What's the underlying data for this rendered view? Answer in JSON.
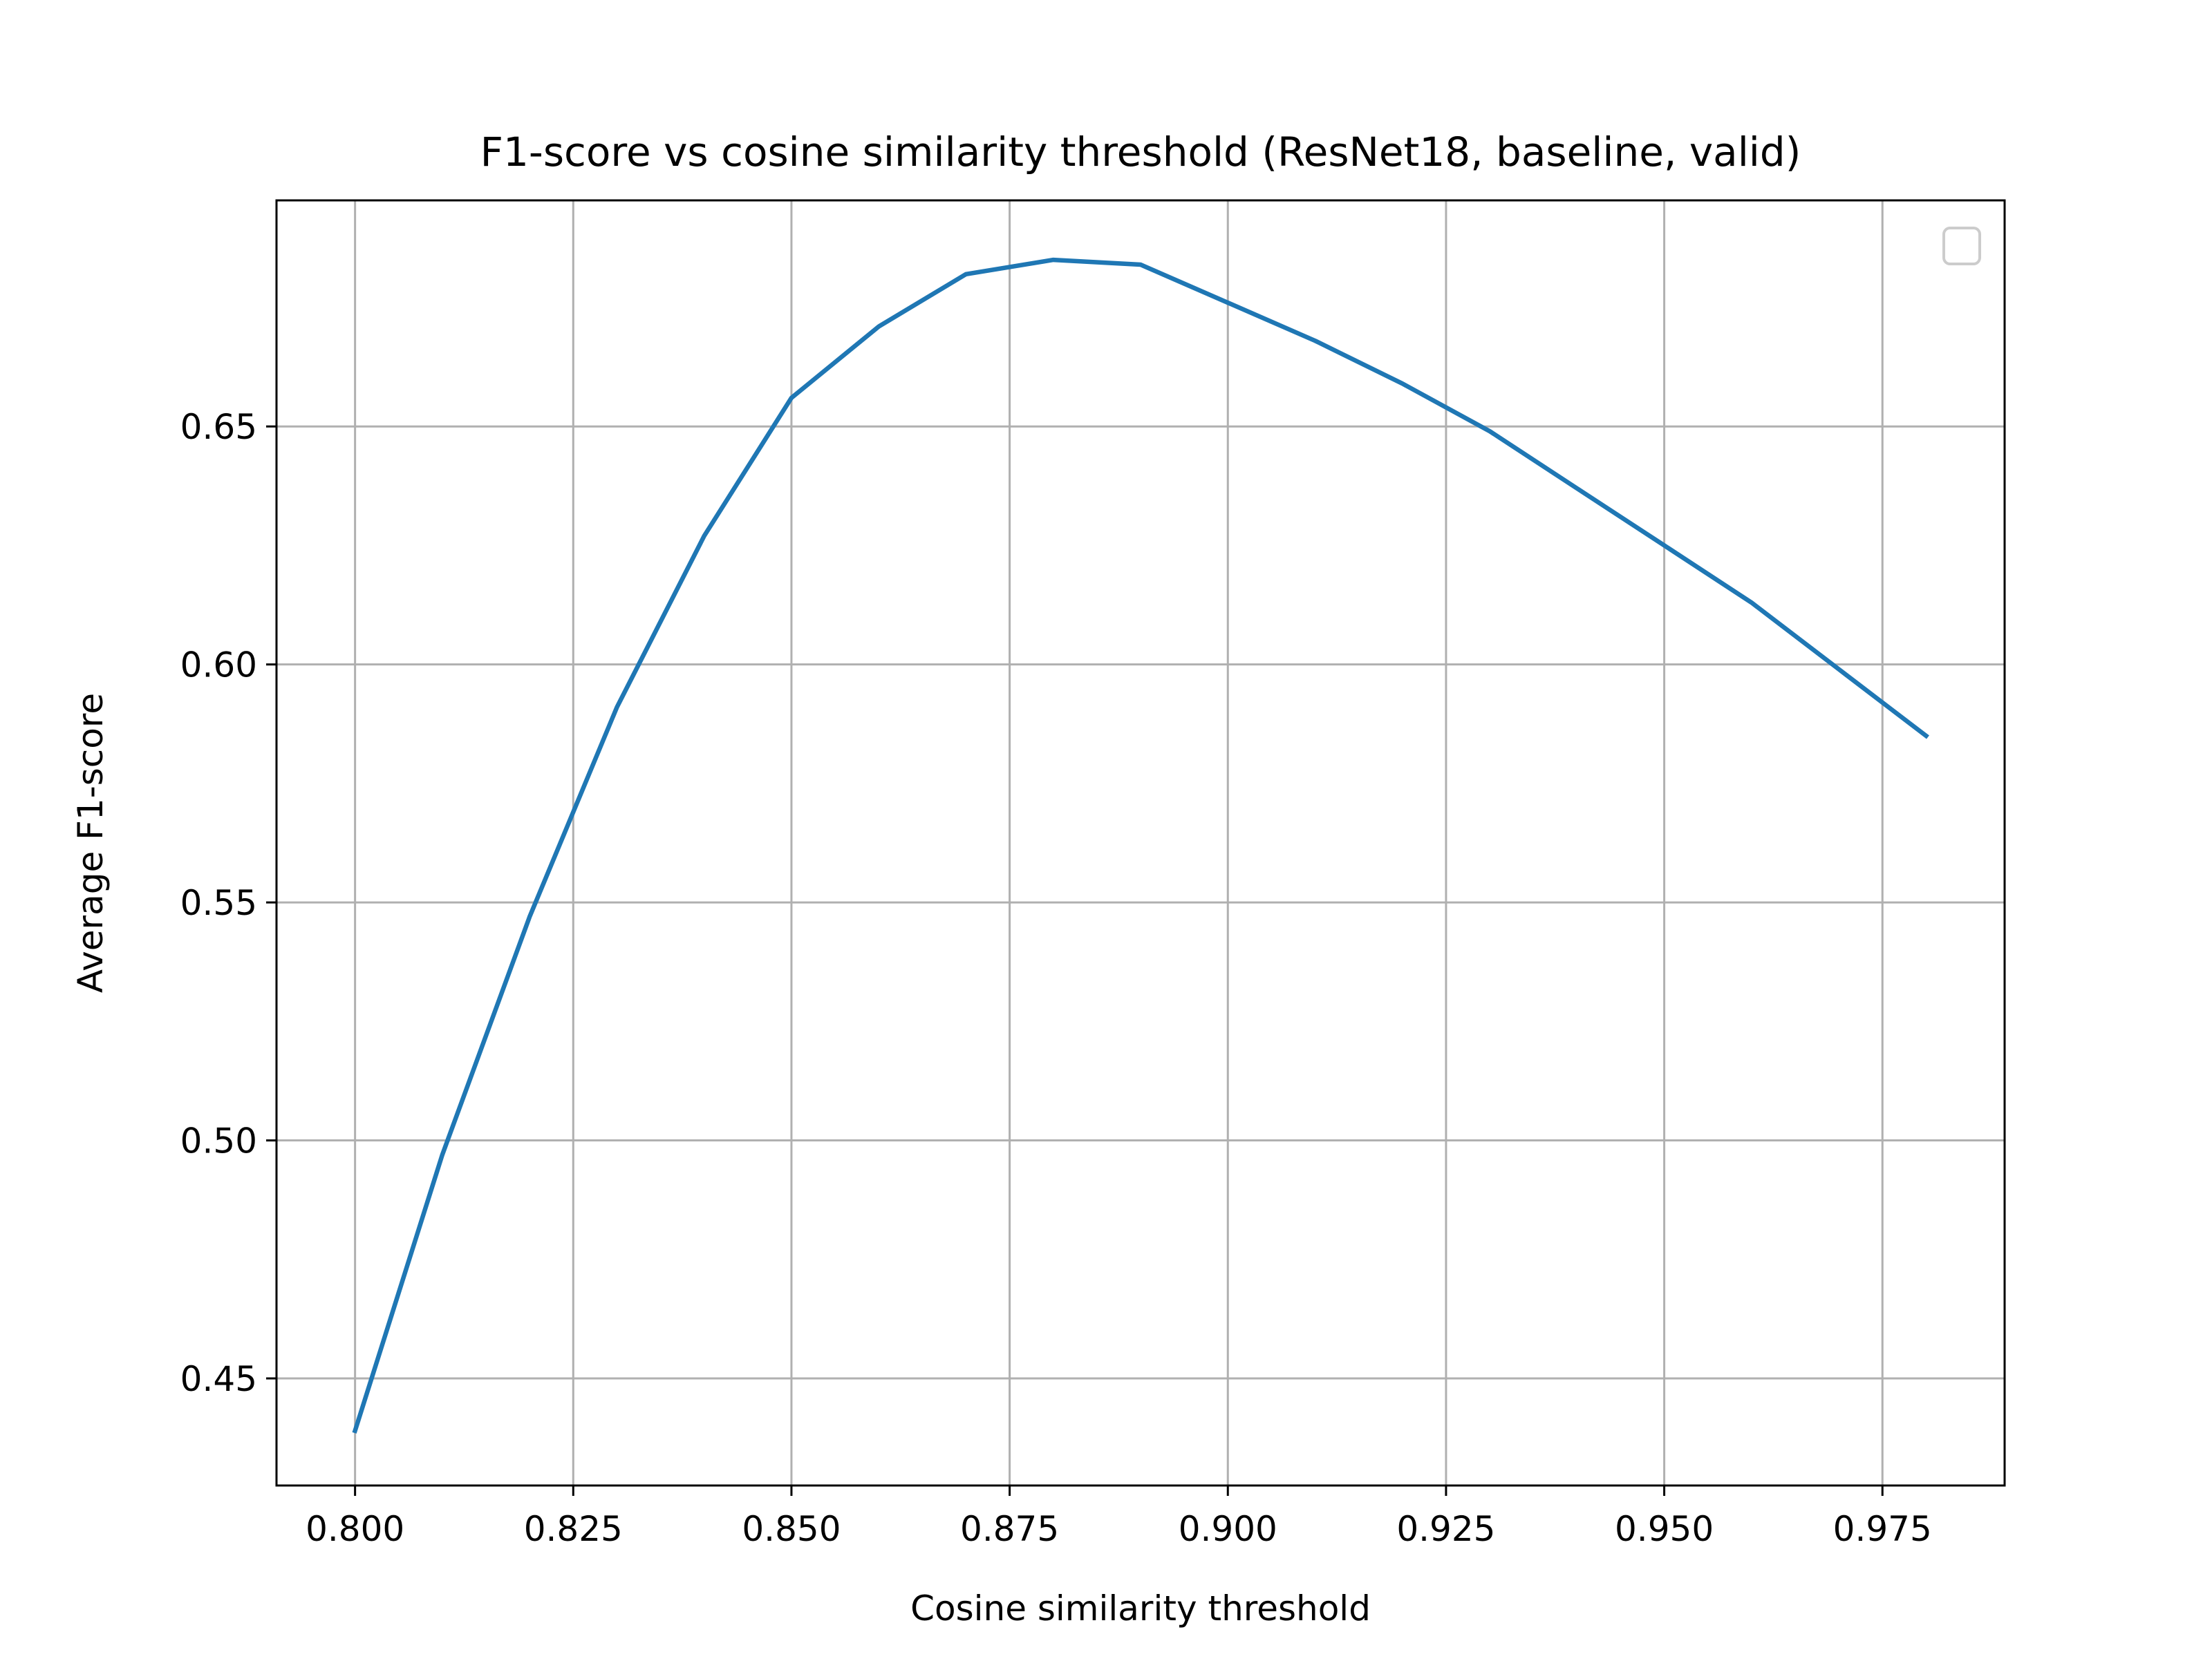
{
  "chart_data": {
    "type": "line",
    "title": "F1-score vs cosine similarity threshold (ResNet18, baseline, valid)",
    "xlabel": "Cosine similarity threshold",
    "ylabel": "Average F1-score",
    "xlim": [
      0.791,
      0.989
    ],
    "ylim": [
      0.4275,
      0.6975
    ],
    "xticks": [
      0.8,
      0.825,
      0.85,
      0.875,
      0.9,
      0.925,
      0.95,
      0.975
    ],
    "xtick_labels": [
      "0.800",
      "0.825",
      "0.850",
      "0.875",
      "0.900",
      "0.925",
      "0.950",
      "0.975"
    ],
    "yticks": [
      0.45,
      0.5,
      0.55,
      0.6,
      0.65
    ],
    "ytick_labels": [
      "0.45",
      "0.50",
      "0.55",
      "0.60",
      "0.65"
    ],
    "grid": true,
    "legend": {
      "placement": "upper-right",
      "entries": []
    },
    "series": [
      {
        "color": "#1f77b4",
        "x": [
          0.8,
          0.81,
          0.82,
          0.83,
          0.84,
          0.85,
          0.86,
          0.87,
          0.88,
          0.89,
          0.9,
          0.91,
          0.92,
          0.93,
          0.94,
          0.95,
          0.96,
          0.97,
          0.98
        ],
        "y": [
          0.439,
          0.497,
          0.547,
          0.591,
          0.627,
          0.656,
          0.671,
          0.682,
          0.685,
          0.684,
          0.676,
          0.668,
          0.659,
          0.649,
          0.637,
          0.625,
          0.613,
          0.599,
          0.585
        ]
      }
    ]
  }
}
